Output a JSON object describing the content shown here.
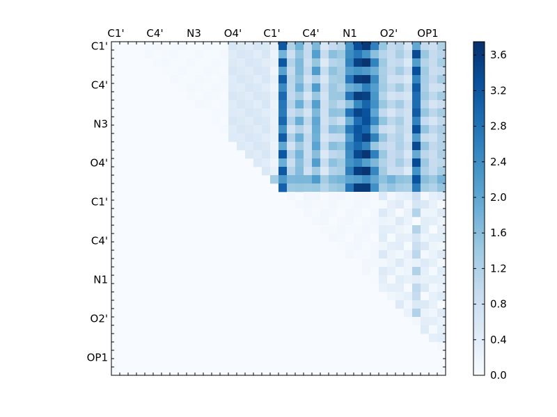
{
  "chart_data": {
    "type": "heatmap",
    "title": "",
    "xlabel": "",
    "ylabel": "",
    "colormap": "Blues",
    "grid": false,
    "x_tick_labels": [
      "C1'",
      "C4'",
      "N3",
      "O4'",
      "C1'",
      "C4'",
      "N1",
      "O2'",
      "OP1"
    ],
    "y_tick_labels": [
      "C1'",
      "C4'",
      "N3",
      "O4'",
      "C1'",
      "C4'",
      "N1",
      "O2'",
      "OP1"
    ],
    "x_tick_position": "top",
    "matrix_size": 40,
    "colorbar": {
      "range": [
        0.0,
        3.75
      ],
      "ticks": [
        "0.0",
        "0.4",
        "0.8",
        "1.2",
        "1.6",
        "2.0",
        "2.4",
        "2.8",
        "3.2",
        "3.6"
      ]
    },
    "high_value_columns": {
      "description_values": [
        {
          "col": 20,
          "value": 3.2
        },
        {
          "col": 28,
          "value": 2.8
        },
        {
          "col": 29,
          "value": 3.6
        },
        {
          "col": 30,
          "value": 3.7
        },
        {
          "col": 31,
          "value": 2.6
        },
        {
          "col": 36,
          "value": 3.4
        },
        {
          "col": 22,
          "value": 1.9
        },
        {
          "col": 24,
          "value": 2.2
        },
        {
          "col": 26,
          "value": 1.6
        }
      ]
    },
    "band_rows": [
      {
        "row": 16,
        "value": 1.8
      },
      {
        "row": 17,
        "value": 1.5
      }
    ]
  }
}
